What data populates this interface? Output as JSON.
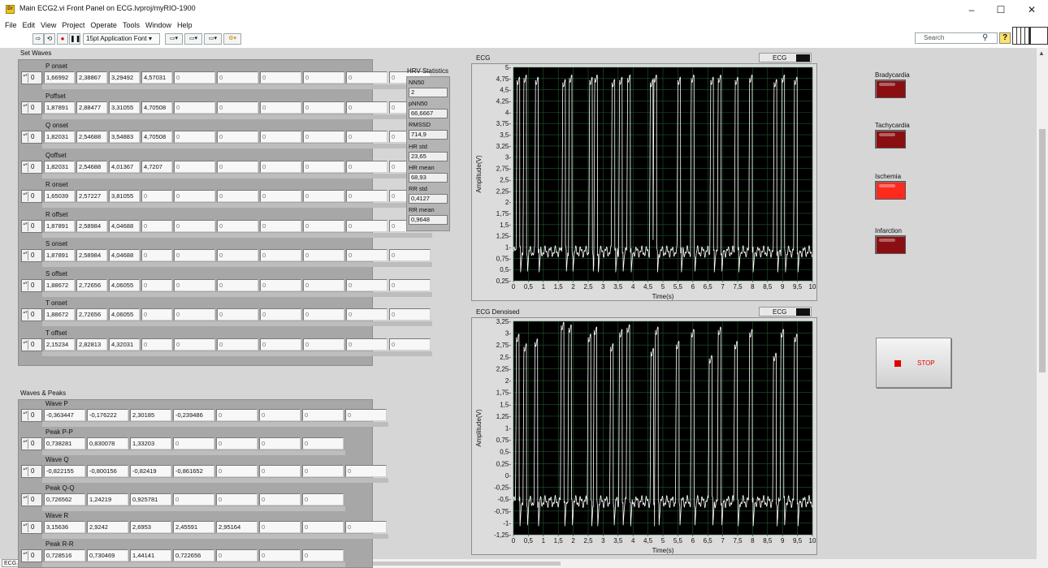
{
  "window": {
    "title": "Main ECG2.vi Front Panel on ECG.lvproj/myRIO-1900",
    "app_icon": "labview-vi-icon",
    "controls": {
      "minimize": "–",
      "maximize": "☐",
      "close": "✕"
    }
  },
  "menu": [
    "File",
    "Edit",
    "View",
    "Project",
    "Operate",
    "Tools",
    "Window",
    "Help"
  ],
  "toolbar": {
    "font": "15pt Application Font",
    "search_placeholder": "Search"
  },
  "set_waves": {
    "label": "Set Waves",
    "arrays": [
      {
        "label": "P onset",
        "index": "0",
        "values": [
          "1,66992",
          "2,38867",
          "3,29492",
          "4,57031",
          "0",
          "0",
          "0",
          "0",
          "0",
          "0"
        ]
      },
      {
        "label": "Poffset",
        "index": "0",
        "values": [
          "1,87891",
          "2,88477",
          "3,31055",
          "4,70508",
          "0",
          "0",
          "0",
          "0",
          "0",
          "0"
        ]
      },
      {
        "label": "Q onset",
        "index": "0",
        "values": [
          "1,82031",
          "2,54688",
          "3,54883",
          "4,70508",
          "0",
          "0",
          "0",
          "0",
          "0",
          "0"
        ]
      },
      {
        "label": "Qoffset",
        "index": "0",
        "values": [
          "1,82031",
          "2,54688",
          "4,01367",
          "4,7207",
          "0",
          "0",
          "0",
          "0",
          "0",
          "0"
        ]
      },
      {
        "label": "R onset",
        "index": "0",
        "values": [
          "1,65039",
          "2,57227",
          "3,81055",
          "0",
          "0",
          "0",
          "0",
          "0",
          "0",
          "0"
        ]
      },
      {
        "label": "R offset",
        "index": "0",
        "values": [
          "1,87891",
          "2,58984",
          "4,04688",
          "0",
          "0",
          "0",
          "0",
          "0",
          "0",
          "0"
        ]
      },
      {
        "label": "S onset",
        "index": "0",
        "values": [
          "1,87891",
          "2,58984",
          "4,04688",
          "0",
          "0",
          "0",
          "0",
          "0",
          "0",
          "0"
        ]
      },
      {
        "label": "S offset",
        "index": "0",
        "values": [
          "1,88672",
          "2,72656",
          "4,06055",
          "0",
          "0",
          "0",
          "0",
          "0",
          "0",
          "0"
        ]
      },
      {
        "label": "T onset",
        "index": "0",
        "values": [
          "1,88672",
          "2,72656",
          "4,06055",
          "0",
          "0",
          "0",
          "0",
          "0",
          "0",
          "0"
        ]
      },
      {
        "label": "T offset",
        "index": "0",
        "values": [
          "2,15234",
          "2,82813",
          "4,32031",
          "0",
          "0",
          "0",
          "0",
          "0",
          "0",
          "0"
        ]
      }
    ]
  },
  "waves_peaks": {
    "label": "Waves & Peaks",
    "arrays": [
      {
        "label": "Wave P",
        "index": "0",
        "values": [
          "-0,363447",
          "-0,176222",
          "2,30185",
          "-0,239486",
          "0",
          "0",
          "0",
          "0"
        ]
      },
      {
        "label": "Peak  P-P",
        "index": "0",
        "values": [
          "0,738281",
          "0,830078",
          "1,33203",
          "0",
          "0",
          "0",
          "0"
        ]
      },
      {
        "label": "Wave Q",
        "index": "0",
        "values": [
          "-0,822155",
          "-0,800156",
          "-0,82419",
          "-0,861652",
          "0",
          "0",
          "0",
          "0"
        ]
      },
      {
        "label": "Peak Q-Q",
        "index": "0",
        "values": [
          "0,726562",
          "1,24219",
          "0,925781",
          "0",
          "0",
          "0",
          "0"
        ]
      },
      {
        "label": "Wave R",
        "index": "0",
        "values": [
          "3,15636",
          "2,9242",
          "2,6953",
          "2,45591",
          "2,95164",
          "0",
          "0",
          "0"
        ]
      },
      {
        "label": "Peak R-R",
        "index": "0",
        "values": [
          "0,728516",
          "0,730469",
          "1,44141",
          "0,722656",
          "0",
          "0",
          "0"
        ]
      }
    ]
  },
  "hrv": {
    "title": "HRV Statistics",
    "items": [
      {
        "label": "NN50",
        "value": "2"
      },
      {
        "label": "pNN50",
        "value": "66,6667"
      },
      {
        "label": "RMSSD",
        "value": "714,9"
      },
      {
        "label": "HR std",
        "value": "23,65"
      },
      {
        "label": "HR mean",
        "value": "68,93"
      },
      {
        "label": "RR std",
        "value": "0,4127"
      },
      {
        "label": "RR mean",
        "value": "0,9648"
      }
    ]
  },
  "leds": [
    {
      "label": "Bradycardia",
      "state": "off",
      "color": "#8b0f12"
    },
    {
      "label": "Tachycardia",
      "state": "off",
      "color": "#8b0f12"
    },
    {
      "label": "Ischemia",
      "state": "on",
      "color": "#ff2a1f"
    },
    {
      "label": "Infarction",
      "state": "off",
      "color": "#8b0f12"
    }
  ],
  "stop_button": {
    "label": "STOP"
  },
  "status_tab": "ECG.lvproj/myRIO-1900",
  "chart_data": [
    {
      "type": "line",
      "title": "ECG",
      "legend": "ECG",
      "xlabel": "Time(s)",
      "ylabel": "Amplitude(V)",
      "xlim": [
        0,
        10
      ],
      "ylim": [
        0.25,
        5
      ],
      "xticks": [
        "0",
        "0,5",
        "1",
        "1,5",
        "2",
        "2,5",
        "3",
        "3,5",
        "4",
        "4,5",
        "5",
        "5,5",
        "6",
        "6,5",
        "7",
        "7,5",
        "8",
        "8,5",
        "9",
        "9,5",
        "10"
      ],
      "yticks": [
        "0,25",
        "0,5",
        "0,75",
        "1",
        "1,25",
        "1,5",
        "1,75",
        "2",
        "2,25",
        "2,5",
        "2,75",
        "3",
        "3,25",
        "3,5",
        "3,75",
        "4",
        "4,25",
        "4,5",
        "4,75",
        "5"
      ],
      "grid": true,
      "background": "#000000",
      "line_color": "#ffffff",
      "beats": [
        {
          "x": 0.12,
          "peak": 4.7
        },
        {
          "x": 0.35,
          "peak": 4.75
        },
        {
          "x": 0.74,
          "peak": 4.7
        },
        {
          "x": 1.65,
          "peak": 4.65
        },
        {
          "x": 1.87,
          "peak": 4.75
        },
        {
          "x": 2.55,
          "peak": 4.7
        },
        {
          "x": 2.72,
          "peak": 4.75
        },
        {
          "x": 3.3,
          "peak": 4.65
        },
        {
          "x": 3.55,
          "peak": 4.7
        },
        {
          "x": 3.82,
          "peak": 4.75
        },
        {
          "x": 4.58,
          "peak": 4.65
        },
        {
          "x": 4.7,
          "peak": 4.75
        },
        {
          "x": 5.5,
          "peak": 4.7
        },
        {
          "x": 5.95,
          "peak": 4.75
        },
        {
          "x": 6.6,
          "peak": 4.7
        },
        {
          "x": 6.85,
          "peak": 4.75
        },
        {
          "x": 7.42,
          "peak": 4.7
        },
        {
          "x": 7.9,
          "peak": 4.75
        },
        {
          "x": 8.72,
          "peak": 4.65
        },
        {
          "x": 8.98,
          "peak": 4.75
        },
        {
          "x": 9.4,
          "peak": 4.7
        }
      ],
      "baseline": 0.9
    },
    {
      "type": "line",
      "title": "ECG Denoised",
      "legend": "ECG",
      "xlabel": "Time(s)",
      "ylabel": "Amplitude(V)",
      "xlim": [
        0,
        10
      ],
      "ylim": [
        -1.25,
        3.25
      ],
      "xticks": [
        "0",
        "0,5",
        "1",
        "1,5",
        "2",
        "2,5",
        "3",
        "3,5",
        "4",
        "4,5",
        "5",
        "5,5",
        "6",
        "6,5",
        "7",
        "7,5",
        "8",
        "8,5",
        "9",
        "9,5",
        "10"
      ],
      "yticks": [
        "-1,25",
        "-1",
        "-0,75",
        "-0,5",
        "-0,25",
        "0",
        "0,25",
        "0,5",
        "0,75",
        "1",
        "1,25",
        "1,5",
        "1,75",
        "2",
        "2,25",
        "2,5",
        "2,75",
        "3",
        "3,25"
      ],
      "grid": true,
      "background": "#000000",
      "line_color": "#ffffff",
      "beats": [
        {
          "x": 0.1,
          "peak": 2.9
        },
        {
          "x": 0.35,
          "peak": 2.7
        },
        {
          "x": 0.72,
          "peak": 2.8
        },
        {
          "x": 1.6,
          "peak": 3.15
        },
        {
          "x": 1.85,
          "peak": 3.1
        },
        {
          "x": 2.5,
          "peak": 2.9
        },
        {
          "x": 2.7,
          "peak": 3.05
        },
        {
          "x": 3.25,
          "peak": 2.7
        },
        {
          "x": 3.55,
          "peak": 3.0
        },
        {
          "x": 3.8,
          "peak": 3.1
        },
        {
          "x": 4.6,
          "peak": 2.6
        },
        {
          "x": 4.75,
          "peak": 3.05
        },
        {
          "x": 5.45,
          "peak": 2.75
        },
        {
          "x": 5.95,
          "peak": 3.0
        },
        {
          "x": 6.55,
          "peak": 2.45
        },
        {
          "x": 6.85,
          "peak": 3.05
        },
        {
          "x": 7.4,
          "peak": 2.75
        },
        {
          "x": 7.9,
          "peak": 3.0
        },
        {
          "x": 8.7,
          "peak": 2.5
        },
        {
          "x": 8.95,
          "peak": 3.0
        },
        {
          "x": 9.4,
          "peak": 2.9
        }
      ],
      "baseline": -0.55
    }
  ]
}
